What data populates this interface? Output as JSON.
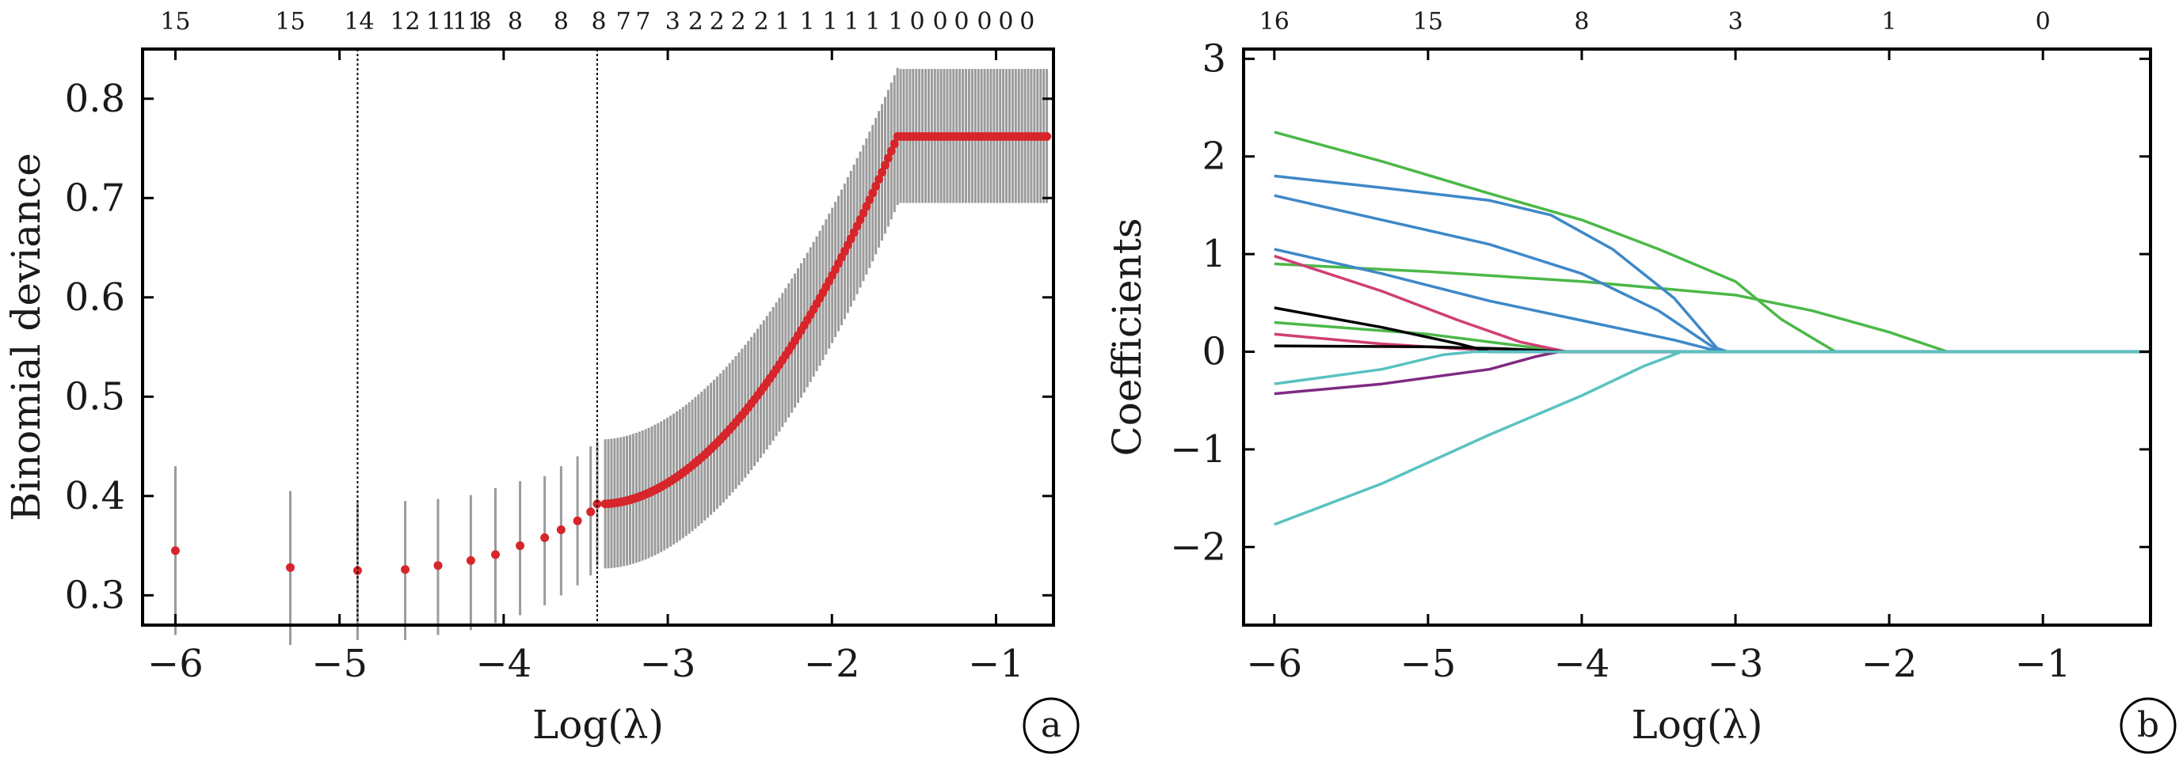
{
  "chart_data": [
    {
      "panel": "a",
      "type": "scatter",
      "xlabel": "Log(λ)",
      "ylabel": "Binomial deviance",
      "xlim": [
        -6.2,
        -0.65
      ],
      "ylim": [
        0.27,
        0.85
      ],
      "x_ticks": [
        -6,
        -5,
        -4,
        -3,
        -2,
        -1
      ],
      "y_ticks": [
        0.3,
        0.4,
        0.5,
        0.6,
        0.7,
        0.8
      ],
      "top_labels": [
        {
          "x": -6.0,
          "text": "15"
        },
        {
          "x": -5.3,
          "text": "15"
        },
        {
          "x": -4.88,
          "text": "14"
        },
        {
          "x": -4.6,
          "text": "12"
        },
        {
          "x": -4.38,
          "text": "11"
        },
        {
          "x": -4.22,
          "text": "11"
        },
        {
          "x": -4.12,
          "text": "8"
        },
        {
          "x": -3.93,
          "text": "8"
        },
        {
          "x": -3.65,
          "text": "8"
        },
        {
          "x": -3.42,
          "text": "8"
        },
        {
          "x": -3.27,
          "text": "7"
        },
        {
          "x": -3.15,
          "text": "7"
        },
        {
          "x": -2.97,
          "text": "3"
        },
        {
          "x": -2.83,
          "text": "2"
        },
        {
          "x": -2.7,
          "text": "2"
        },
        {
          "x": -2.57,
          "text": "2"
        },
        {
          "x": -2.43,
          "text": "2"
        },
        {
          "x": -2.3,
          "text": "1"
        },
        {
          "x": -2.15,
          "text": "1"
        },
        {
          "x": -2.01,
          "text": "1"
        },
        {
          "x": -1.88,
          "text": "1"
        },
        {
          "x": -1.75,
          "text": "1"
        },
        {
          "x": -1.61,
          "text": "1"
        },
        {
          "x": -1.48,
          "text": "0"
        },
        {
          "x": -1.34,
          "text": "0"
        },
        {
          "x": -1.21,
          "text": "0"
        },
        {
          "x": -1.07,
          "text": "0"
        },
        {
          "x": -0.94,
          "text": "0"
        },
        {
          "x": -0.81,
          "text": "0"
        }
      ],
      "vlines": [
        -4.89,
        -3.43
      ],
      "lambda_min": -4.89,
      "lambda_1se": -3.43,
      "points": [
        [
          -6.0,
          0.345,
          0.26,
          0.43
        ],
        [
          -5.3,
          0.328,
          0.25,
          0.405
        ],
        [
          -4.89,
          0.325,
          0.255,
          0.395
        ],
        [
          -4.6,
          0.326,
          0.255,
          0.395
        ],
        [
          -4.4,
          0.33,
          0.26,
          0.397
        ],
        [
          -4.2,
          0.335,
          0.265,
          0.401
        ],
        [
          -4.05,
          0.341,
          0.272,
          0.408
        ],
        [
          -3.9,
          0.35,
          0.28,
          0.415
        ],
        [
          -3.75,
          0.358,
          0.29,
          0.42
        ],
        [
          -3.65,
          0.366,
          0.3,
          0.43
        ],
        [
          -3.55,
          0.375,
          0.31,
          0.44
        ],
        [
          -3.47,
          0.384,
          0.32,
          0.45
        ],
        [
          -3.43,
          0.392,
          0.33,
          0.455
        ]
      ],
      "curve_params": {
        "x0": -3.4,
        "y0": 0.392,
        "x1": -1.6,
        "y1": 0.762,
        "flat_to": -0.7,
        "band_low": 0.695,
        "band_high": 0.83
      },
      "colors": {
        "point": "#d7262b",
        "errorbar": "#9b9b9b",
        "vline": "#000000"
      }
    },
    {
      "panel": "b",
      "type": "line",
      "xlabel": "Log(λ)",
      "ylabel": "Coefficients",
      "xlim": [
        -6.2,
        -0.3
      ],
      "ylim": [
        -2.8,
        3.1
      ],
      "x_ticks": [
        -6,
        -5,
        -4,
        -3,
        -2,
        -1
      ],
      "y_ticks": [
        -2,
        -1,
        0,
        1,
        2,
        3
      ],
      "top_labels": [
        {
          "x": -6.0,
          "text": "16"
        },
        {
          "x": -5.0,
          "text": "15"
        },
        {
          "x": -4.0,
          "text": "8"
        },
        {
          "x": -3.0,
          "text": "3"
        },
        {
          "x": -2.0,
          "text": "1"
        },
        {
          "x": -1.0,
          "text": "0"
        }
      ],
      "series": [
        {
          "color": "#4cb848",
          "values": [
            [
              -6.0,
              2.25
            ],
            [
              -5.3,
              1.95
            ],
            [
              -4.6,
              1.62
            ],
            [
              -4.0,
              1.35
            ],
            [
              -3.5,
              1.05
            ],
            [
              -3.0,
              0.72
            ],
            [
              -2.7,
              0.33
            ],
            [
              -2.35,
              0.0
            ],
            [
              -0.3,
              0.0
            ]
          ]
        },
        {
          "color": "#4cb848",
          "values": [
            [
              -6.0,
              0.9
            ],
            [
              -5.0,
              0.82
            ],
            [
              -4.0,
              0.72
            ],
            [
              -3.0,
              0.58
            ],
            [
              -2.5,
              0.42
            ],
            [
              -2.0,
              0.2
            ],
            [
              -1.62,
              0.0
            ],
            [
              -0.3,
              0.0
            ]
          ]
        },
        {
          "color": "#4cb848",
          "values": [
            [
              -6.0,
              0.3
            ],
            [
              -5.0,
              0.18
            ],
            [
              -4.5,
              0.08
            ],
            [
              -4.1,
              0.0
            ],
            [
              -0.3,
              0.0
            ]
          ]
        },
        {
          "color": "#3e88c8",
          "values": [
            [
              -6.0,
              1.8
            ],
            [
              -5.3,
              1.68
            ],
            [
              -4.6,
              1.55
            ],
            [
              -4.2,
              1.4
            ],
            [
              -3.8,
              1.05
            ],
            [
              -3.4,
              0.55
            ],
            [
              -3.1,
              0.0
            ],
            [
              -0.3,
              0.0
            ]
          ]
        },
        {
          "color": "#3e88c8",
          "values": [
            [
              -6.0,
              1.6
            ],
            [
              -5.3,
              1.35
            ],
            [
              -4.6,
              1.1
            ],
            [
              -4.0,
              0.8
            ],
            [
              -3.5,
              0.42
            ],
            [
              -3.15,
              0.05
            ],
            [
              -3.05,
              0.0
            ],
            [
              -0.3,
              0.0
            ]
          ]
        },
        {
          "color": "#3e88c8",
          "values": [
            [
              -6.0,
              1.05
            ],
            [
              -5.3,
              0.8
            ],
            [
              -4.6,
              0.52
            ],
            [
              -4.0,
              0.32
            ],
            [
              -3.4,
              0.12
            ],
            [
              -3.1,
              0.0
            ],
            [
              -0.3,
              0.0
            ]
          ]
        },
        {
          "color": "#cf3f74",
          "values": [
            [
              -6.0,
              0.98
            ],
            [
              -5.3,
              0.62
            ],
            [
              -4.8,
              0.32
            ],
            [
              -4.4,
              0.1
            ],
            [
              -4.1,
              0.0
            ],
            [
              -0.3,
              0.0
            ]
          ]
        },
        {
          "color": "#cf3f74",
          "values": [
            [
              -6.0,
              0.18
            ],
            [
              -5.3,
              0.08
            ],
            [
              -4.8,
              0.03
            ],
            [
              -4.4,
              0.01
            ],
            [
              -4.1,
              0.0
            ],
            [
              -0.3,
              0.0
            ]
          ]
        },
        {
          "color": "#000000",
          "values": [
            [
              -6.0,
              0.45
            ],
            [
              -5.3,
              0.25
            ],
            [
              -4.8,
              0.08
            ],
            [
              -4.6,
              0.0
            ],
            [
              -0.3,
              0.0
            ]
          ]
        },
        {
          "color": "#000000",
          "values": [
            [
              -6.0,
              0.06
            ],
            [
              -5.0,
              0.05
            ],
            [
              -4.5,
              0.03
            ],
            [
              -4.1,
              0.0
            ],
            [
              -0.3,
              0.0
            ]
          ]
        },
        {
          "color": "#7f2a83",
          "values": [
            [
              -6.0,
              -0.43
            ],
            [
              -5.3,
              -0.33
            ],
            [
              -4.6,
              -0.18
            ],
            [
              -4.3,
              -0.05
            ],
            [
              -4.15,
              0.0
            ],
            [
              -0.3,
              0.0
            ]
          ]
        },
        {
          "color": "#58c2c1",
          "values": [
            [
              -6.0,
              -0.33
            ],
            [
              -5.3,
              -0.18
            ],
            [
              -4.9,
              -0.03
            ],
            [
              -4.7,
              0.0
            ],
            [
              -0.3,
              0.0
            ]
          ]
        },
        {
          "color": "#58c2c1",
          "values": [
            [
              -6.0,
              -1.77
            ],
            [
              -5.3,
              -1.35
            ],
            [
              -4.6,
              -0.85
            ],
            [
              -4.0,
              -0.45
            ],
            [
              -3.6,
              -0.15
            ],
            [
              -3.35,
              0.0
            ],
            [
              -0.3,
              0.0
            ]
          ]
        }
      ]
    }
  ],
  "panels": [
    {
      "xlabel": "Log(λ)",
      "ylabel": "Binomial deviance",
      "badge": "a"
    },
    {
      "xlabel": "Log(λ)",
      "ylabel": "Coefficients",
      "badge": "b"
    }
  ]
}
